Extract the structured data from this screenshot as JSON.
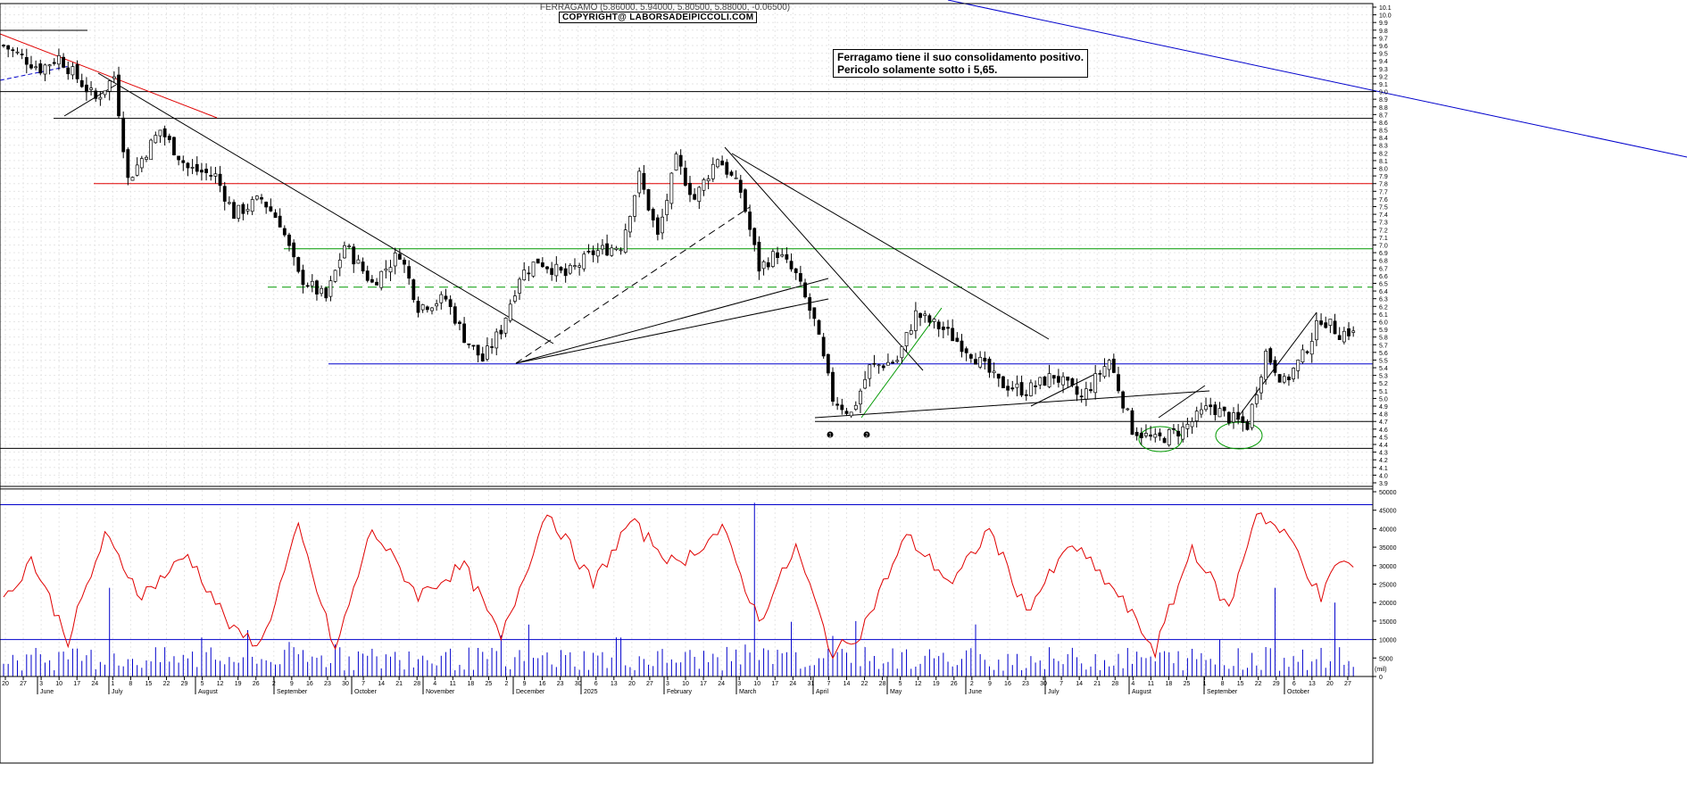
{
  "header": {
    "title": "FERRAGAMO (5.86000, 5.94000, 5.80500, 5.88000, -0.06500)",
    "copyright": "COPYRIGHT@ LABORSADEIPICCOLI.COM"
  },
  "annotation": {
    "line1": "Ferragamo tiene il suo consolidamento positivo.",
    "line2": "Pericolo solamente sotto i 5,65."
  },
  "markers": [
    "1",
    "2"
  ],
  "colors": {
    "price_up": "#ffffff",
    "price_down": "#000000",
    "resistance_red": "#e00000",
    "support_blue": "#0000cc",
    "zone_green": "#009900",
    "volume_bar": "#0000cc",
    "volume_avg": "#e00000"
  },
  "chart_data": [
    {
      "type": "candlestick",
      "title": "FERRAGAMO (5.86000, 5.94000, 5.80500, 5.88000, -0.06500)",
      "ylim": [
        3.9,
        10.1
      ],
      "y_ticks": [
        "3.9",
        "4.0",
        "4.1",
        "4.2",
        "4.3",
        "4.4",
        "4.5",
        "4.6",
        "4.7",
        "4.8",
        "4.9",
        "5.0",
        "5.1",
        "5.2",
        "5.3",
        "5.4",
        "5.5",
        "5.6",
        "5.7",
        "5.8",
        "5.9",
        "6.0",
        "6.1",
        "6.2",
        "6.3",
        "6.4",
        "6.5",
        "6.6",
        "6.7",
        "6.8",
        "6.9",
        "7.0",
        "7.1",
        "7.2",
        "7.3",
        "7.4",
        "7.5",
        "7.6",
        "7.7",
        "7.8",
        "7.9",
        "8.0",
        "8.1",
        "8.2",
        "8.3",
        "8.4",
        "8.5",
        "8.6",
        "8.7",
        "8.8",
        "8.9",
        "9.0",
        "9.1",
        "9.2",
        "9.3",
        "9.4",
        "9.5",
        "9.6",
        "9.7",
        "9.8",
        "9.9",
        "10.0",
        "10.1"
      ],
      "x_day_ticks": [
        "20",
        "27",
        "3",
        "10",
        "17",
        "24",
        "1",
        "8",
        "15",
        "22",
        "29",
        "5",
        "12",
        "19",
        "26",
        "2",
        "9",
        "16",
        "23",
        "30",
        "7",
        "14",
        "21",
        "28",
        "4",
        "11",
        "18",
        "25",
        "2",
        "9",
        "16",
        "23",
        "30",
        "6",
        "13",
        "20",
        "27",
        "3",
        "10",
        "17",
        "24",
        "3",
        "10",
        "17",
        "24",
        "31",
        "7",
        "14",
        "22",
        "28",
        "5",
        "12",
        "19",
        "26",
        "2",
        "9",
        "16",
        "23",
        "30",
        "7",
        "14",
        "21",
        "28",
        "4",
        "11",
        "18",
        "25",
        "1",
        "8",
        "15",
        "22",
        "29",
        "6",
        "13",
        "20",
        "27"
      ],
      "x_month_labels": [
        "June",
        "July",
        "August",
        "September",
        "October",
        "November",
        "December",
        "2025",
        "February",
        "March",
        "April",
        "May",
        "June",
        "July",
        "August",
        "September",
        "October"
      ],
      "last": {
        "open": 5.86,
        "high": 5.94,
        "low": 5.805,
        "close": 5.88,
        "change": -0.065
      },
      "anchors": [
        [
          0,
          9.6
        ],
        [
          8,
          9.3
        ],
        [
          12,
          9.45
        ],
        [
          20,
          8.9
        ],
        [
          24,
          9.2
        ],
        [
          27,
          7.85
        ],
        [
          34,
          8.5
        ],
        [
          40,
          8.0
        ],
        [
          46,
          7.9
        ],
        [
          50,
          7.4
        ],
        [
          56,
          7.6
        ],
        [
          60,
          7.3
        ],
        [
          64,
          6.6
        ],
        [
          70,
          6.3
        ],
        [
          74,
          7.0
        ],
        [
          80,
          6.5
        ],
        [
          86,
          6.9
        ],
        [
          90,
          6.2
        ],
        [
          96,
          6.3
        ],
        [
          100,
          5.8
        ],
        [
          104,
          5.5
        ],
        [
          108,
          5.9
        ],
        [
          112,
          6.6
        ],
        [
          116,
          6.8
        ],
        [
          122,
          6.6
        ],
        [
          128,
          6.9
        ],
        [
          134,
          7.0
        ],
        [
          138,
          7.9
        ],
        [
          142,
          7.1
        ],
        [
          146,
          8.1
        ],
        [
          150,
          7.6
        ],
        [
          155,
          8.15
        ],
        [
          160,
          7.7
        ],
        [
          164,
          6.7
        ],
        [
          168,
          6.9
        ],
        [
          172,
          6.6
        ],
        [
          176,
          6.0
        ],
        [
          180,
          5.0
        ],
        [
          184,
          4.8
        ],
        [
          188,
          5.4
        ],
        [
          194,
          5.5
        ],
        [
          198,
          6.1
        ],
        [
          204,
          5.9
        ],
        [
          210,
          5.6
        ],
        [
          216,
          5.2
        ],
        [
          222,
          5.1
        ],
        [
          228,
          5.3
        ],
        [
          234,
          5.0
        ],
        [
          240,
          5.5
        ],
        [
          245,
          4.6
        ],
        [
          250,
          4.45
        ],
        [
          256,
          4.6
        ],
        [
          262,
          4.9
        ],
        [
          266,
          4.75
        ],
        [
          270,
          4.65
        ],
        [
          274,
          5.6
        ],
        [
          278,
          5.2
        ],
        [
          282,
          5.55
        ],
        [
          286,
          6.05
        ],
        [
          290,
          5.85
        ],
        [
          293,
          5.88
        ]
      ],
      "horizontal_lines": [
        {
          "y": 9.0,
          "color": "black"
        },
        {
          "y": 8.65,
          "color": "black"
        },
        {
          "y": 7.8,
          "color": "red"
        },
        {
          "y": 6.95,
          "color": "green"
        },
        {
          "y": 6.45,
          "color": "green",
          "dashed": true
        },
        {
          "y": 5.45,
          "color": "blue"
        },
        {
          "y": 4.7,
          "color": "black"
        },
        {
          "y": 4.35,
          "color": "black"
        },
        {
          "y": 3.82,
          "color": "black"
        }
      ]
    },
    {
      "type": "bar",
      "title": "",
      "ylabel": "(mil)",
      "ylim": [
        0,
        50000
      ],
      "y_ticks": [
        "0",
        "5000",
        "10000",
        "15000",
        "20000",
        "25000",
        "30000",
        "35000",
        "40000",
        "45000",
        "50000"
      ],
      "reference_lines": [
        {
          "y": 46500,
          "color": "blue"
        },
        {
          "y": 10000,
          "color": "blue"
        }
      ],
      "volume_avg_anchors": [
        [
          0,
          20000
        ],
        [
          6,
          32000
        ],
        [
          14,
          10000
        ],
        [
          22,
          38000
        ],
        [
          30,
          22000
        ],
        [
          40,
          33000
        ],
        [
          50,
          12000
        ],
        [
          56,
          9000
        ],
        [
          64,
          40000
        ],
        [
          72,
          7000
        ],
        [
          80,
          40000
        ],
        [
          90,
          22000
        ],
        [
          100,
          30000
        ],
        [
          108,
          10000
        ],
        [
          118,
          45000
        ],
        [
          128,
          25000
        ],
        [
          136,
          42000
        ],
        [
          146,
          30000
        ],
        [
          156,
          40000
        ],
        [
          164,
          15000
        ],
        [
          172,
          35000
        ],
        [
          180,
          6000
        ],
        [
          186,
          12000
        ],
        [
          196,
          38000
        ],
        [
          206,
          25000
        ],
        [
          214,
          40000
        ],
        [
          222,
          18000
        ],
        [
          232,
          36000
        ],
        [
          242,
          22000
        ],
        [
          250,
          7000
        ],
        [
          258,
          35000
        ],
        [
          266,
          18000
        ],
        [
          272,
          45000
        ],
        [
          280,
          36000
        ],
        [
          286,
          21000
        ],
        [
          290,
          32000
        ],
        [
          293,
          29000
        ]
      ],
      "spikes": [
        [
          23,
          24000
        ],
        [
          163,
          47000
        ],
        [
          185,
          15000
        ],
        [
          276,
          24000
        ],
        [
          289,
          20000
        ]
      ]
    }
  ]
}
